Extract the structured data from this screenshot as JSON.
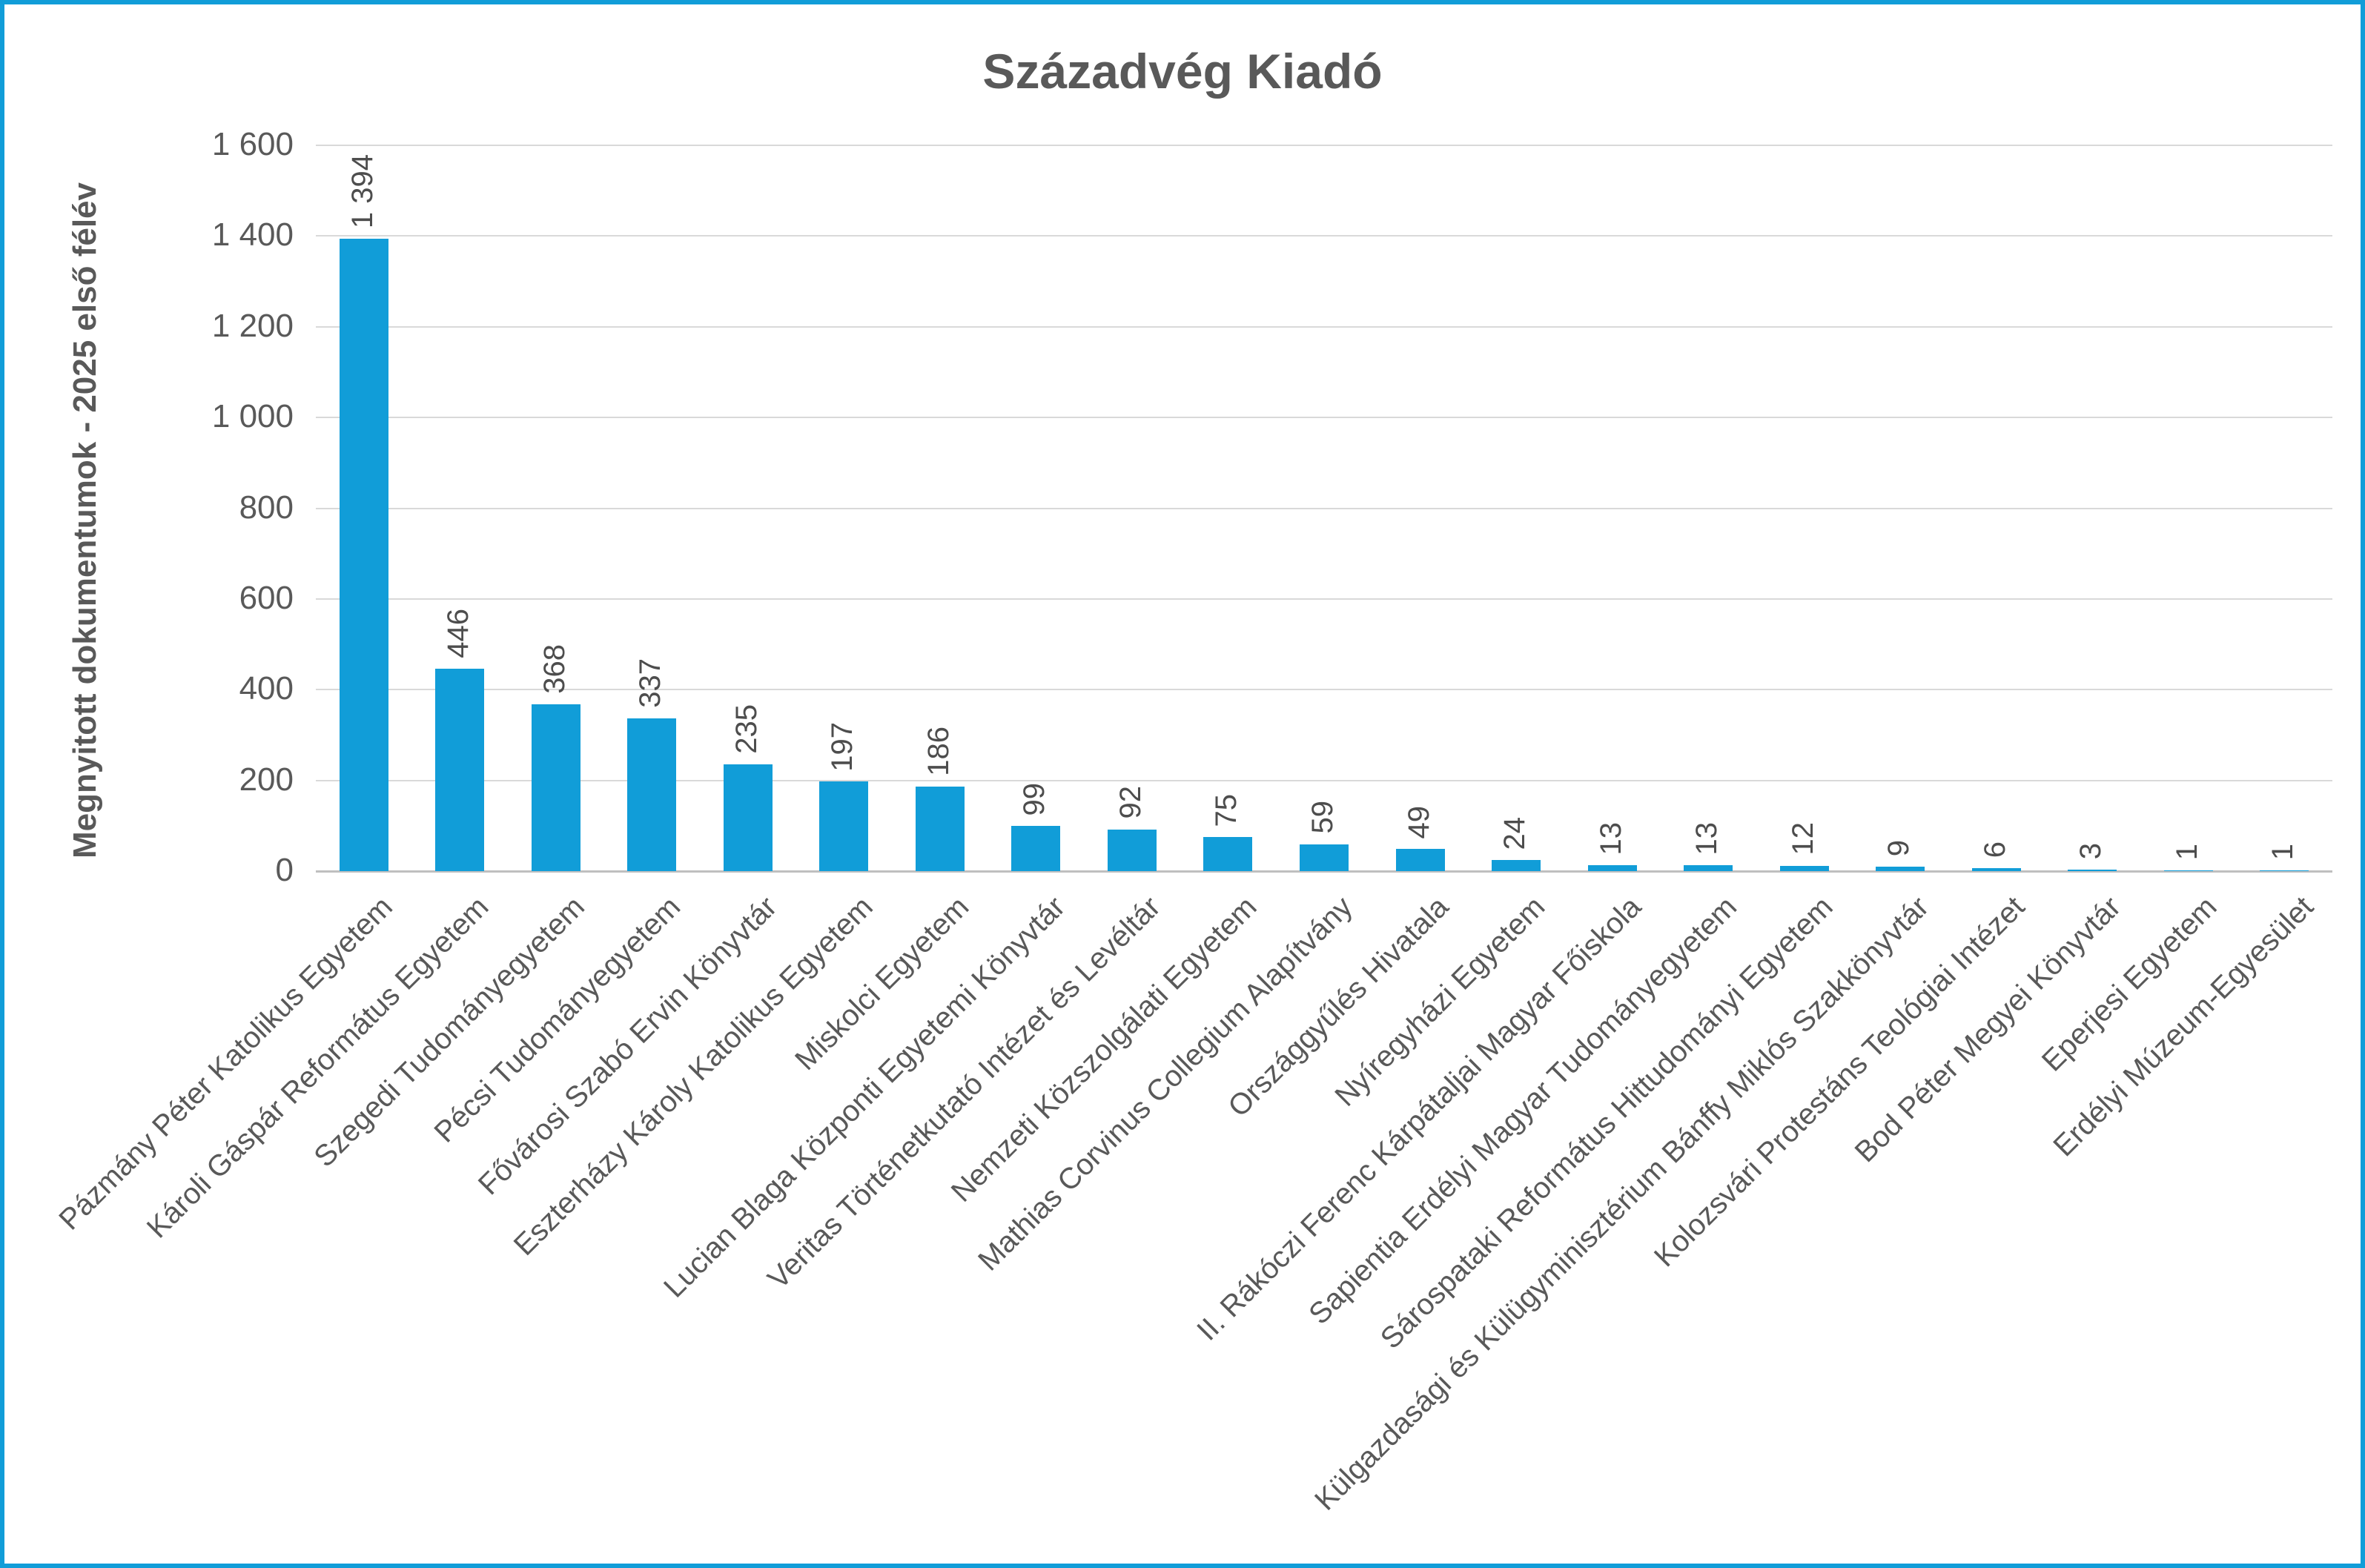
{
  "frame": {
    "border_color": "#119dd8",
    "background_color": "#ffffff"
  },
  "chart_data": {
    "type": "bar",
    "title": "Századvég Kiadó",
    "xlabel": "",
    "ylabel": "Megnyitott dokumentumok - 2025 első félév",
    "categories": [
      "Pázmány Péter Katolikus Egyetem",
      "Károli Gáspár Református Egyetem",
      "Szegedi Tudományegyetem",
      "Pécsi Tudományegyetem",
      "Fővárosi Szabó Ervin Könyvtár",
      "Eszterházy Károly Katolikus Egyetem",
      "Miskolci Egyetem",
      "Lucian Blaga Központi Egyetemi Könyvtár",
      "Veritas Történetkutató Intézet és Levéltár",
      "Nemzeti Közszolgálati Egyetem",
      "Mathias Corvinus Collegium Alapítvány",
      "Országgyűlés Hivatala",
      "Nyíregyházi Egyetem",
      "II. Rákóczi Ferenc Kárpátaljai Magyar Főiskola",
      "Sapientia Erdélyi Magyar Tudományegyetem",
      "Sárospataki Református Hittudományi Egyetem",
      "Külgazdasági és Külügyminisztérium Bánffy Miklós Szakkönyvtár",
      "Kolozsvári Protestáns Teológiai Intézet",
      "Bod Péter Megyei Könyvtár",
      "Eperjesi Egyetem",
      "Erdélyi Múzeum-Egyesület"
    ],
    "values": [
      1394,
      446,
      368,
      337,
      235,
      197,
      186,
      99,
      92,
      75,
      59,
      49,
      24,
      13,
      13,
      12,
      9,
      6,
      3,
      1,
      1
    ],
    "ylim": [
      0,
      1600
    ],
    "yticks": [
      0,
      200,
      400,
      600,
      800,
      1000,
      1200,
      1400,
      1600
    ],
    "grid": "horizontal-only",
    "legend": "none",
    "bar_color": "#119dd8",
    "text_color": "#595959",
    "gridline_color": "#d9d9d9",
    "axis_line_color": "#bfbfbf",
    "value_label_rotation_deg": -90,
    "category_label_rotation_deg": -45,
    "thousands_separator": "space"
  }
}
